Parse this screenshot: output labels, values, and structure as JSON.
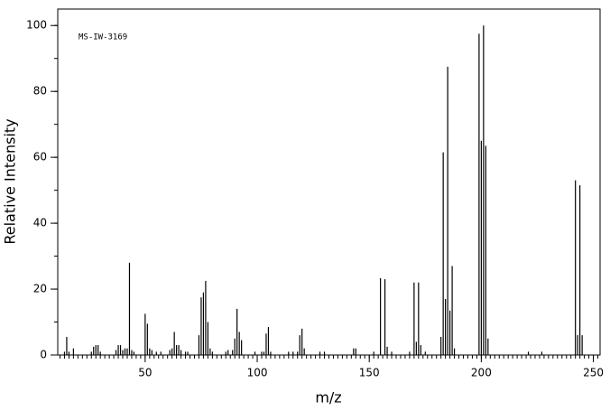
{
  "chart_data": {
    "type": "stem",
    "annotation": "MS-IW-3169",
    "xlabel": "m/z",
    "ylabel": "Relative Intensity",
    "color": "#000000",
    "xlim": [
      11,
      253
    ],
    "ylim": [
      0,
      105
    ],
    "xticks": [
      50,
      100,
      150,
      200,
      250
    ],
    "yticks": [
      0,
      20,
      40,
      60,
      80,
      100
    ],
    "xminor": 2,
    "yminor": 10,
    "x": [
      14,
      15,
      16,
      18,
      26,
      27,
      28,
      29,
      30,
      37,
      38,
      39,
      40,
      41,
      42,
      43,
      44,
      45,
      50,
      51,
      52,
      53,
      55,
      57,
      61,
      62,
      63,
      64,
      65,
      66,
      68,
      69,
      74,
      75,
      76,
      77,
      78,
      79,
      80,
      86,
      87,
      89,
      90,
      91,
      92,
      93,
      99,
      102,
      103,
      104,
      105,
      106,
      114,
      116,
      118,
      119,
      120,
      121,
      128,
      130,
      143,
      144,
      152,
      155,
      157,
      158,
      160,
      168,
      170,
      171,
      172,
      173,
      175,
      182,
      183,
      184,
      185,
      186,
      187,
      188,
      199,
      200,
      201,
      202,
      203,
      221,
      227,
      242,
      243,
      244,
      245
    ],
    "values": [
      1,
      5.5,
      1,
      2,
      1,
      2.5,
      3,
      3,
      1,
      1.5,
      3,
      3,
      1.5,
      2,
      2,
      28,
      1.5,
      1,
      12.5,
      9.5,
      2,
      1.5,
      1,
      1,
      1.5,
      2,
      7,
      3,
      3,
      1.5,
      1,
      1,
      6,
      17.5,
      19,
      22.5,
      10,
      2,
      1,
      1,
      1.5,
      1.5,
      5,
      14,
      7,
      4.5,
      1,
      1,
      1,
      6.5,
      8.5,
      1,
      1,
      1,
      1,
      6,
      8,
      2,
      1,
      1,
      2,
      2,
      1,
      23.3,
      23,
      2.5,
      1,
      1,
      22,
      4,
      22,
      3,
      1,
      5.5,
      61.5,
      17,
      87.5,
      13.5,
      27,
      2,
      97.5,
      65,
      100,
      63.5,
      5,
      1,
      1,
      53,
      6,
      51.5,
      6
    ]
  }
}
